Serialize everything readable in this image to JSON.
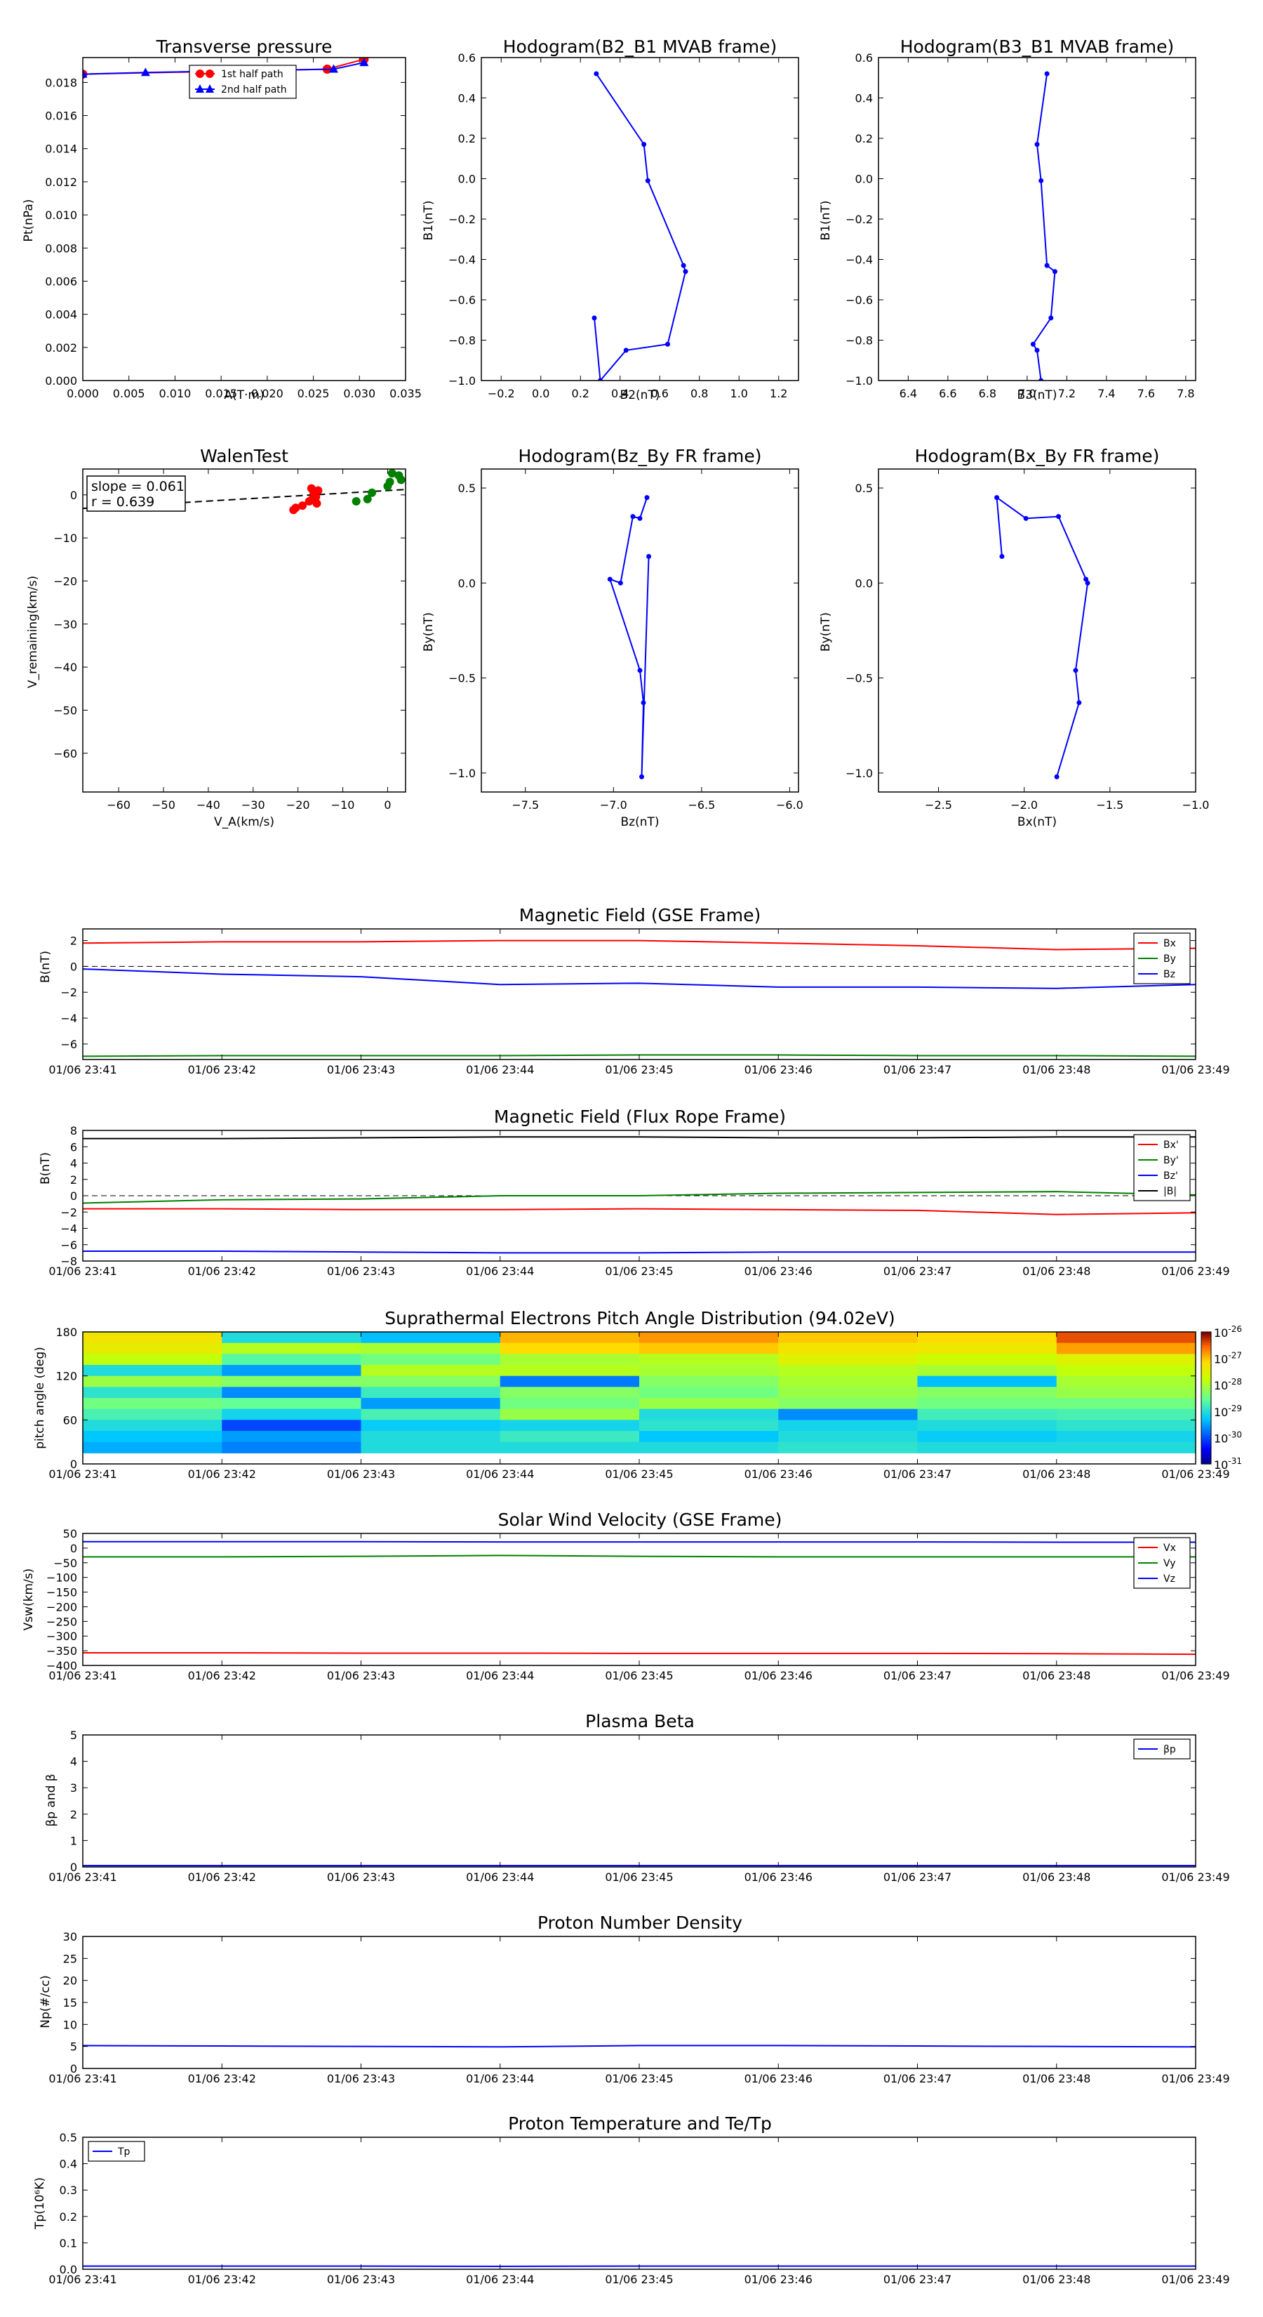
{
  "figure": {
    "background": "#ffffff"
  },
  "chart_data": [
    {
      "id": "tp",
      "type": "line",
      "title": "Transverse pressure",
      "xlabel": "A(T·m)",
      "ylabel": "Pt(nPa)",
      "xlim": [
        0,
        0.035
      ],
      "ylim": [
        0,
        0.0195
      ],
      "xticks": [
        0,
        0.005,
        0.01,
        0.015,
        0.02,
        0.025,
        0.03,
        0.035
      ],
      "xtick_labels": [
        "0.000",
        "0.005",
        "0.010",
        "0.015",
        "0.020",
        "0.025",
        "0.030",
        "0.035"
      ],
      "yticks": [
        0,
        0.002,
        0.004,
        0.006,
        0.008,
        0.01,
        0.012,
        0.014,
        0.016,
        0.018
      ],
      "ytick_labels": [
        "0.000",
        "0.002",
        "0.004",
        "0.006",
        "0.008",
        "0.010",
        "0.012",
        "0.014",
        "0.016",
        "0.018"
      ],
      "legend": {
        "position": "top-center"
      },
      "series": [
        {
          "name": "1st half path",
          "color": "#ff0000",
          "marker": "circle",
          "x": [
            0.0,
            0.0265,
            0.0305
          ],
          "y": [
            0.0185,
            0.0188,
            0.0194
          ]
        },
        {
          "name": "2nd half path",
          "color": "#0000ff",
          "marker": "triangle",
          "x": [
            0.0,
            0.0068,
            0.0272,
            0.0305
          ],
          "y": [
            0.0185,
            0.0186,
            0.0188,
            0.0192
          ]
        }
      ]
    },
    {
      "id": "hodo1",
      "type": "line",
      "title": "Hodogram(B2_B1 MVAB frame)",
      "xlabel": "B2(nT)",
      "ylabel": "B1(nT)",
      "xlim": [
        -0.3,
        1.3
      ],
      "ylim": [
        -1.0,
        0.6
      ],
      "xticks": [
        -0.2,
        0.0,
        0.2,
        0.4,
        0.6,
        0.8,
        1.0,
        1.2
      ],
      "xtick_labels": [
        "−0.2",
        "0.0",
        "0.2",
        "0.4",
        "0.6",
        "0.8",
        "1.0",
        "1.2"
      ],
      "yticks": [
        -1.0,
        -0.8,
        -0.6,
        -0.4,
        -0.2,
        0.0,
        0.2,
        0.4,
        0.6
      ],
      "ytick_labels": [
        "−1.0",
        "−0.8",
        "−0.6",
        "−0.4",
        "−0.2",
        "0.0",
        "0.2",
        "0.4",
        "0.6"
      ],
      "series": [
        {
          "color": "#0000ff",
          "marker": "dot",
          "x": [
            0.28,
            0.52,
            0.54,
            0.72,
            0.73,
            0.64,
            0.43,
            0.3,
            0.27
          ],
          "y": [
            0.52,
            0.17,
            -0.01,
            -0.43,
            -0.46,
            -0.82,
            -0.85,
            -1.0,
            -0.69
          ]
        }
      ]
    },
    {
      "id": "hodo2",
      "type": "line",
      "title": "Hodogram(B3_B1 MVAB frame)",
      "xlabel": "B3(nT)",
      "ylabel": "B1(nT)",
      "xlim": [
        6.25,
        7.85
      ],
      "ylim": [
        -1.0,
        0.6
      ],
      "xticks": [
        6.4,
        6.6,
        6.8,
        7.0,
        7.2,
        7.4,
        7.6,
        7.8
      ],
      "xtick_labels": [
        "6.4",
        "6.6",
        "6.8",
        "7.0",
        "7.2",
        "7.4",
        "7.6",
        "7.8"
      ],
      "yticks": [
        -1.0,
        -0.8,
        -0.6,
        -0.4,
        -0.2,
        0.0,
        0.2,
        0.4,
        0.6
      ],
      "ytick_labels": [
        "−1.0",
        "−0.8",
        "−0.6",
        "−0.4",
        "−0.2",
        "0.0",
        "0.2",
        "0.4",
        "0.6"
      ],
      "series": [
        {
          "color": "#0000ff",
          "marker": "dot",
          "x": [
            7.1,
            7.05,
            7.07,
            7.1,
            7.14,
            7.12,
            7.03,
            7.05,
            7.07
          ],
          "y": [
            0.52,
            0.17,
            -0.01,
            -0.43,
            -0.46,
            -0.69,
            -0.82,
            -0.85,
            -1.0
          ]
        }
      ]
    },
    {
      "id": "walen",
      "type": "scatter",
      "title": "WalenTest",
      "xlabel": "V_A(km/s)",
      "ylabel": "V_remaining(km/s)",
      "xlim": [
        -68,
        4
      ],
      "ylim": [
        -69,
        6
      ],
      "xticks": [
        -60,
        -50,
        -40,
        -30,
        -20,
        -10,
        0
      ],
      "xtick_labels": [
        "−60",
        "−50",
        "−40",
        "−30",
        "−20",
        "−10",
        "0"
      ],
      "yticks": [
        -60,
        -50,
        -40,
        -30,
        -20,
        -10,
        0
      ],
      "ytick_labels": [
        "−60",
        "−50",
        "−40",
        "−30",
        "−20",
        "−10",
        "0"
      ],
      "annotation": {
        "line1": "slope = 0.061",
        "line2": "r = 0.639"
      },
      "fit": {
        "slope": 0.061,
        "intercept": 1.0,
        "color": "#000000",
        "dash": true
      },
      "series": [
        {
          "color": "#ff0000",
          "x": [
            -21.0,
            -20.5,
            -19.0,
            -17.5,
            -16.8,
            -16.0,
            -16.5,
            -15.5,
            -17.0,
            -16.3,
            -15.8
          ],
          "y": [
            -3.5,
            -3.0,
            -2.5,
            -1.5,
            -1.0,
            -0.5,
            0.5,
            1.0,
            1.5,
            0.0,
            -2.0
          ]
        },
        {
          "color": "#008000",
          "x": [
            -7.0,
            -4.5,
            -3.5,
            0.0,
            0.5,
            1.0,
            2.5,
            3.0
          ],
          "y": [
            -1.5,
            -1.0,
            0.5,
            2.0,
            3.0,
            5.0,
            4.5,
            3.5
          ]
        }
      ]
    },
    {
      "id": "hodo3",
      "type": "line",
      "title": "Hodogram(Bz_By FR frame)",
      "xlabel": "Bz(nT)",
      "ylabel": "By(nT)",
      "xlim": [
        -7.75,
        -5.95
      ],
      "ylim": [
        -1.1,
        0.6
      ],
      "xticks": [
        -7.5,
        -7.0,
        -6.5,
        -6.0
      ],
      "xtick_labels": [
        "−7.5",
        "−7.0",
        "−6.5",
        "−6.0"
      ],
      "yticks": [
        -1.0,
        -0.5,
        0.0,
        0.5
      ],
      "ytick_labels": [
        "−1.0",
        "−0.5",
        "0.0",
        "0.5"
      ],
      "series": [
        {
          "color": "#0000ff",
          "marker": "dot",
          "x": [
            -6.81,
            -6.85,
            -6.89,
            -6.96,
            -7.02,
            -6.85,
            -6.83,
            -6.84,
            -6.8
          ],
          "y": [
            0.45,
            0.34,
            0.35,
            0.0,
            0.02,
            -0.46,
            -0.63,
            -1.02,
            0.14
          ]
        }
      ]
    },
    {
      "id": "hodo4",
      "type": "line",
      "title": "Hodogram(Bx_By FR frame)",
      "xlabel": "Bx(nT)",
      "ylabel": "By(nT)",
      "xlim": [
        -2.85,
        -1.0
      ],
      "ylim": [
        -1.1,
        0.6
      ],
      "xticks": [
        -2.5,
        -2.0,
        -1.5,
        -1.0
      ],
      "xtick_labels": [
        "−2.5",
        "−2.0",
        "−1.5",
        "−1.0"
      ],
      "yticks": [
        -1.0,
        -0.5,
        0.0,
        0.5
      ],
      "ytick_labels": [
        "−1.0",
        "−0.5",
        "0.0",
        "0.5"
      ],
      "series": [
        {
          "color": "#0000ff",
          "marker": "dot",
          "x": [
            -2.13,
            -2.16,
            -1.99,
            -1.8,
            -1.64,
            -1.63,
            -1.7,
            -1.68,
            -1.81
          ],
          "y": [
            0.14,
            0.45,
            0.34,
            0.35,
            0.02,
            0.0,
            -0.46,
            -0.63,
            -1.02
          ]
        }
      ]
    }
  ],
  "time_axis": {
    "tick_labels": [
      "01/06 23:41",
      "01/06 23:42",
      "01/06 23:43",
      "01/06 23:44",
      "01/06 23:45",
      "01/06 23:46",
      "01/06 23:47",
      "01/06 23:48",
      "01/06 23:49"
    ]
  },
  "time_panels": [
    {
      "id": "bgse",
      "type": "line",
      "title": "Magnetic Field (GSE Frame)",
      "ylabel": "B(nT)",
      "ylim": [
        -7.2,
        2.9
      ],
      "yticks": [
        2,
        0,
        -2,
        -4,
        -6
      ],
      "ytick_labels": [
        "2",
        "0",
        "−2",
        "−4",
        "−6"
      ],
      "zero_line": true,
      "legend": {
        "position": "top-right"
      },
      "series": [
        {
          "name": "Bx",
          "color": "#ff0000",
          "values": [
            1.8,
            1.9,
            1.9,
            2.0,
            2.0,
            1.8,
            1.6,
            1.3,
            1.4
          ]
        },
        {
          "name": "By",
          "color": "#008000",
          "values": [
            -6.95,
            -6.9,
            -6.9,
            -6.9,
            -6.85,
            -6.85,
            -6.9,
            -6.9,
            -6.95
          ]
        },
        {
          "name": "Bz",
          "color": "#0000ff",
          "values": [
            -0.2,
            -0.6,
            -0.8,
            -1.4,
            -1.3,
            -1.6,
            -1.6,
            -1.7,
            -1.4
          ]
        }
      ]
    },
    {
      "id": "bfr",
      "type": "line",
      "title": "Magnetic Field (Flux Rope Frame)",
      "ylabel": "B(nT)",
      "ylim": [
        -8,
        8
      ],
      "yticks": [
        8,
        6,
        4,
        2,
        0,
        -2,
        -4,
        -6,
        -8
      ],
      "ytick_labels": [
        "8",
        "6",
        "4",
        "2",
        "0",
        "−2",
        "−4",
        "−6",
        "−8"
      ],
      "zero_line": true,
      "legend": {
        "position": "top-right"
      },
      "series": [
        {
          "name": "Bx'",
          "color": "#ff0000",
          "values": [
            -1.6,
            -1.6,
            -1.7,
            -1.7,
            -1.6,
            -1.7,
            -1.8,
            -2.3,
            -2.1
          ]
        },
        {
          "name": "By'",
          "color": "#008000",
          "values": [
            -0.9,
            -0.5,
            -0.4,
            0.0,
            0.0,
            0.3,
            0.4,
            0.5,
            0.1
          ]
        },
        {
          "name": "Bz'",
          "color": "#0000ff",
          "values": [
            -6.8,
            -6.8,
            -6.9,
            -7.0,
            -7.0,
            -6.9,
            -6.9,
            -6.9,
            -6.9
          ]
        },
        {
          "name": "|B|",
          "color": "#000000",
          "values": [
            7.0,
            7.0,
            7.1,
            7.2,
            7.2,
            7.1,
            7.1,
            7.2,
            7.2
          ]
        }
      ]
    },
    {
      "id": "pad",
      "type": "heatmap",
      "title": "Suprathermal Electrons Pitch Angle Distribution (94.02eV)",
      "ylabel": "pitch angle (deg)",
      "ylim": [
        0,
        180
      ],
      "yticks": [
        180,
        120,
        60,
        0
      ],
      "ytick_labels": [
        "180",
        "120",
        "60",
        "0"
      ],
      "colorbar": {
        "ticks": [
          "10",
          "10",
          "10",
          "10",
          "10",
          "10"
        ],
        "exponents": [
          "-26",
          "-27",
          "-28",
          "-29",
          "-30",
          "-31"
        ]
      },
      "bins_deg": [
        [
          165,
          180
        ],
        [
          150,
          165
        ],
        [
          135,
          150
        ],
        [
          120,
          135
        ],
        [
          105,
          120
        ],
        [
          90,
          105
        ],
        [
          75,
          90
        ],
        [
          60,
          75
        ],
        [
          45,
          60
        ],
        [
          30,
          45
        ],
        [
          15,
          30
        ]
      ],
      "columns": [
        [
          0.75,
          0.72,
          0.64,
          0.4,
          0.58,
          0.42,
          0.52,
          0.46,
          0.4,
          0.35,
          0.32
        ],
        [
          0.4,
          0.62,
          0.48,
          0.3,
          0.55,
          0.28,
          0.5,
          0.38,
          0.2,
          0.3,
          0.27
        ],
        [
          0.34,
          0.6,
          0.52,
          0.62,
          0.55,
          0.44,
          0.3,
          0.46,
          0.36,
          0.4,
          0.4
        ],
        [
          0.82,
          0.78,
          0.6,
          0.62,
          0.26,
          0.55,
          0.52,
          0.58,
          0.38,
          0.44,
          0.4
        ],
        [
          0.85,
          0.8,
          0.62,
          0.6,
          0.55,
          0.52,
          0.58,
          0.4,
          0.42,
          0.35,
          0.4
        ],
        [
          0.8,
          0.75,
          0.7,
          0.62,
          0.6,
          0.58,
          0.55,
          0.28,
          0.38,
          0.4,
          0.42
        ],
        [
          0.78,
          0.74,
          0.66,
          0.6,
          0.34,
          0.55,
          0.52,
          0.45,
          0.4,
          0.36,
          0.4
        ],
        [
          0.92,
          0.84,
          0.7,
          0.64,
          0.6,
          0.58,
          0.52,
          0.46,
          0.42,
          0.38,
          0.4
        ]
      ]
    },
    {
      "id": "vsw",
      "type": "line",
      "title": "Solar Wind Velocity (GSE Frame)",
      "ylabel": "Vsw(km/s)",
      "ylim": [
        -400,
        50
      ],
      "yticks": [
        50,
        0,
        -50,
        -100,
        -150,
        -200,
        -250,
        -300,
        -350,
        -400
      ],
      "ytick_labels": [
        "50",
        "0",
        "−50",
        "−100",
        "−150",
        "−200",
        "−250",
        "−300",
        "−350",
        "−400"
      ],
      "legend": {
        "position": "top-right"
      },
      "series": [
        {
          "name": "Vx",
          "color": "#ff0000",
          "values": [
            -357,
            -357,
            -358,
            -358,
            -359,
            -359,
            -359,
            -360,
            -362
          ]
        },
        {
          "name": "Vy",
          "color": "#008000",
          "values": [
            -30,
            -30,
            -28,
            -25,
            -28,
            -30,
            -30,
            -30,
            -30
          ]
        },
        {
          "name": "Vz",
          "color": "#0000ff",
          "values": [
            22,
            22,
            22,
            21,
            21,
            21,
            21,
            20,
            20
          ]
        }
      ]
    },
    {
      "id": "beta",
      "type": "line",
      "title": "Plasma Beta",
      "ylabel": "βp and β",
      "ylim": [
        0,
        5
      ],
      "yticks": [
        5,
        4,
        3,
        2,
        1,
        0
      ],
      "ytick_labels": [
        "5",
        "4",
        "3",
        "2",
        "1",
        "0"
      ],
      "legend": {
        "position": "top-right"
      },
      "series": [
        {
          "name": "βp",
          "color": "#0000ff",
          "values": [
            0.05,
            0.05,
            0.05,
            0.05,
            0.05,
            0.05,
            0.05,
            0.05,
            0.05
          ]
        }
      ]
    },
    {
      "id": "np",
      "type": "line",
      "title": "Proton Number Density",
      "ylabel": "Np(#/cc)",
      "ylim": [
        0,
        30
      ],
      "yticks": [
        30,
        25,
        20,
        15,
        10,
        5,
        0
      ],
      "ytick_labels": [
        "30",
        "25",
        "20",
        "15",
        "10",
        "5",
        "0"
      ],
      "series": [
        {
          "color": "#0000ff",
          "values": [
            5.2,
            5.1,
            5.0,
            4.9,
            5.2,
            5.2,
            5.1,
            5.0,
            4.9
          ]
        }
      ]
    },
    {
      "id": "tp2",
      "type": "line",
      "title": "Proton Temperature and Te/Tp",
      "ylabel": "Tp(10⁶K)",
      "ylim": [
        0,
        0.5
      ],
      "yticks": [
        0.5,
        0.4,
        0.3,
        0.2,
        0.1,
        0.0
      ],
      "ytick_labels": [
        "0.5",
        "0.4",
        "0.3",
        "0.2",
        "0.1",
        "0.0"
      ],
      "legend": {
        "position": "top-left"
      },
      "series": [
        {
          "name": "Tp",
          "color": "#0000ff",
          "values": [
            0.012,
            0.012,
            0.012,
            0.011,
            0.012,
            0.012,
            0.012,
            0.012,
            0.012
          ]
        }
      ]
    }
  ]
}
